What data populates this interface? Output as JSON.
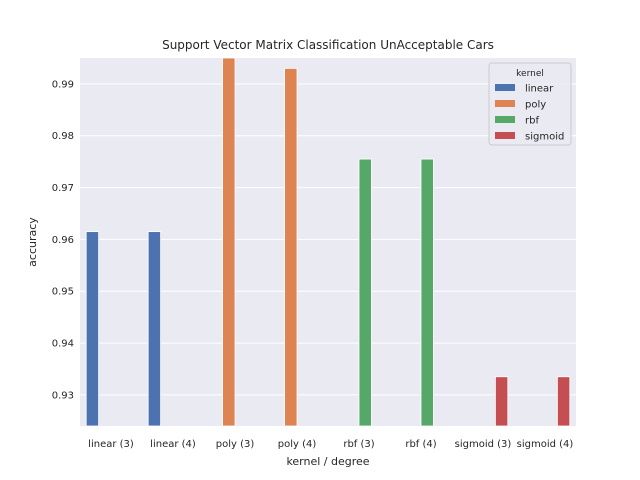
{
  "chart_data": {
    "type": "bar",
    "title": "Support Vector Matrix Classification UnAcceptable Cars",
    "xlabel": "kernel / degree",
    "ylabel": "accuracy",
    "ylim": [
      0.924,
      0.995
    ],
    "yticks": [
      0.93,
      0.94,
      0.95,
      0.96,
      0.97,
      0.98,
      0.99
    ],
    "ytick_labels": [
      "0.93",
      "0.94",
      "0.95",
      "0.96",
      "0.97",
      "0.98",
      "0.99"
    ],
    "categories": [
      "linear (3)",
      "linear (4)",
      "poly (3)",
      "poly (4)",
      "rbf (3)",
      "rbf (4)",
      "sigmoid (3)",
      "sigmoid (4)"
    ],
    "grid": true,
    "legend": {
      "title": "kernel",
      "placement": "top-right"
    },
    "series": [
      {
        "name": "linear",
        "color": "#4c72b0",
        "values": [
          0.9615,
          0.9615,
          null,
          null,
          null,
          null,
          null,
          null
        ]
      },
      {
        "name": "poly",
        "color": "#dd8452",
        "values": [
          null,
          null,
          0.995,
          0.993,
          null,
          null,
          null,
          null
        ]
      },
      {
        "name": "rbf",
        "color": "#55a868",
        "values": [
          null,
          null,
          null,
          null,
          0.9755,
          0.9755,
          null,
          null
        ]
      },
      {
        "name": "sigmoid",
        "color": "#c44e52",
        "values": [
          null,
          null,
          null,
          null,
          null,
          null,
          0.9335,
          0.9335
        ]
      }
    ]
  }
}
